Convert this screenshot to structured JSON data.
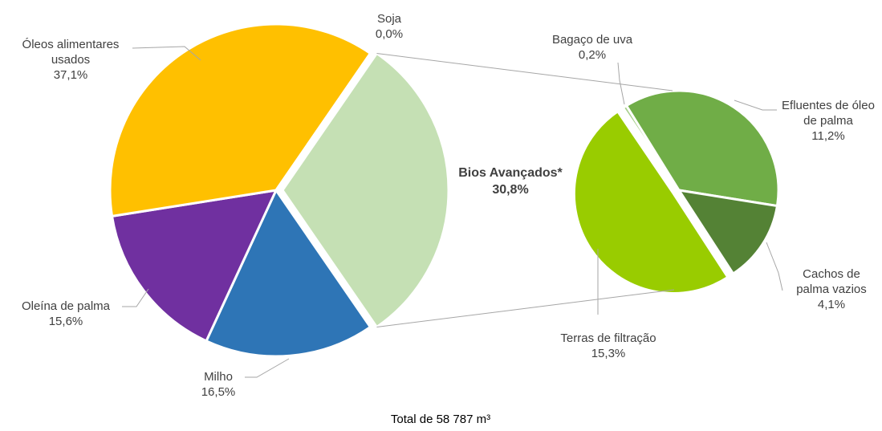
{
  "chart_data": [
    {
      "type": "pie",
      "categories": [
        "Bios Avançados*",
        "Milho",
        "Oleína de palma",
        "Óleos alimentares usados",
        "Soja"
      ],
      "values": [
        30.8,
        16.5,
        15.6,
        37.1,
        0.0
      ],
      "value_labels": [
        "30,8%",
        "16,5%",
        "15,6%",
        "37,1%",
        "0,0%"
      ],
      "colors": [
        "#c5e0b4",
        "#2e75b6",
        "#7030a0",
        "#ffc000",
        "#a5a5a5"
      ],
      "note": "Total de 58 787 m³"
    },
    {
      "type": "pie",
      "categories": [
        "Terras de filtração",
        "Bagaço de uva",
        "Efluentes de óleo de palma",
        "Cachos de palma vazios"
      ],
      "values": [
        15.3,
        0.2,
        11.2,
        4.1
      ],
      "value_labels": [
        "15,3%",
        "0,2%",
        "11,2%",
        "4,1%"
      ],
      "colors": [
        "#99cc00",
        "#a9d08e",
        "#70ad47",
        "#548235"
      ]
    }
  ]
}
